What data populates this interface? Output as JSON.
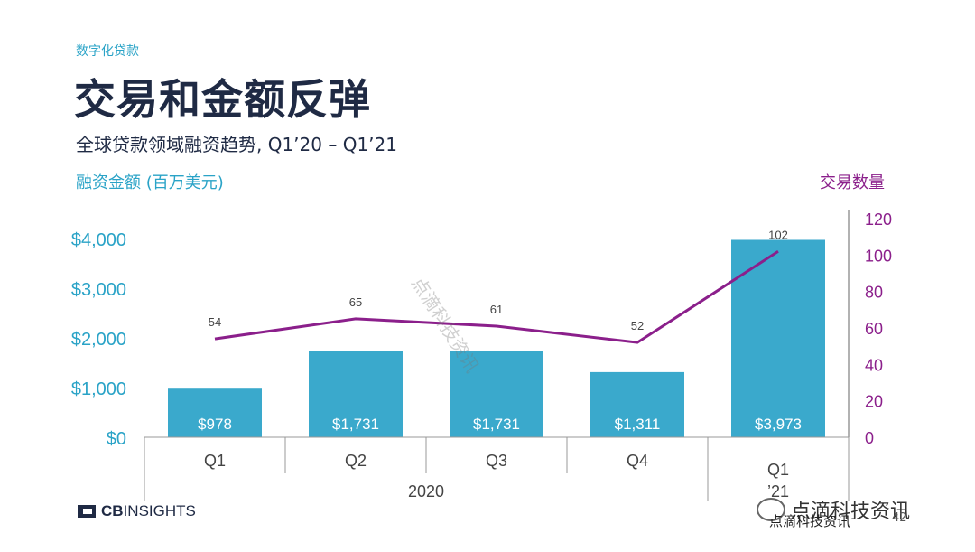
{
  "header": {
    "kicker": "数字化贷款",
    "title": "交易和金额反弹",
    "subtitle": "全球贷款领域融资趋势, Q1’20 – Q1’21"
  },
  "colors": {
    "bar": "#3aa9cc",
    "line": "#8b1f8b",
    "left_axis": "#2aa3c7",
    "right_axis": "#8b1f8b"
  },
  "chart_data": {
    "type": "bar",
    "categories": [
      "Q1",
      "Q2",
      "Q3",
      "Q4",
      "Q1"
    ],
    "year_groups": [
      {
        "label": "2020",
        "categories": [
          "Q1",
          "Q2",
          "Q3",
          "Q4"
        ]
      },
      {
        "label": "’21",
        "categories": [
          "Q1"
        ]
      }
    ],
    "series": [
      {
        "name": "融资金额 (百万美元)",
        "type": "bar",
        "axis": "left",
        "values": [
          978,
          1731,
          1731,
          1311,
          3973
        ],
        "labels": [
          "$978",
          "$1,731",
          "$1,731",
          "$1,311",
          "$3,973"
        ]
      },
      {
        "name": "交易数量",
        "type": "line",
        "axis": "right",
        "values": [
          54,
          65,
          61,
          52,
          102
        ]
      }
    ],
    "ylabel": "融资金额 (百万美元)",
    "y2label": "交易数量",
    "ylim": [
      0,
      4000
    ],
    "yticks": [
      "$0",
      "$1,000",
      "$2,000",
      "$3,000",
      "$4,000"
    ],
    "y2lim": [
      0,
      120
    ],
    "y2ticks": [
      "0",
      "20",
      "40",
      "60",
      "80",
      "100",
      "120"
    ],
    "grid": false
  },
  "footer": {
    "brand_cb": "CB",
    "brand_rest": "INSIGHTS",
    "watermark": "点滴科技资讯",
    "wechat_name": "点滴科技资讯",
    "source": "点滴科技资讯",
    "page_number": "42"
  }
}
